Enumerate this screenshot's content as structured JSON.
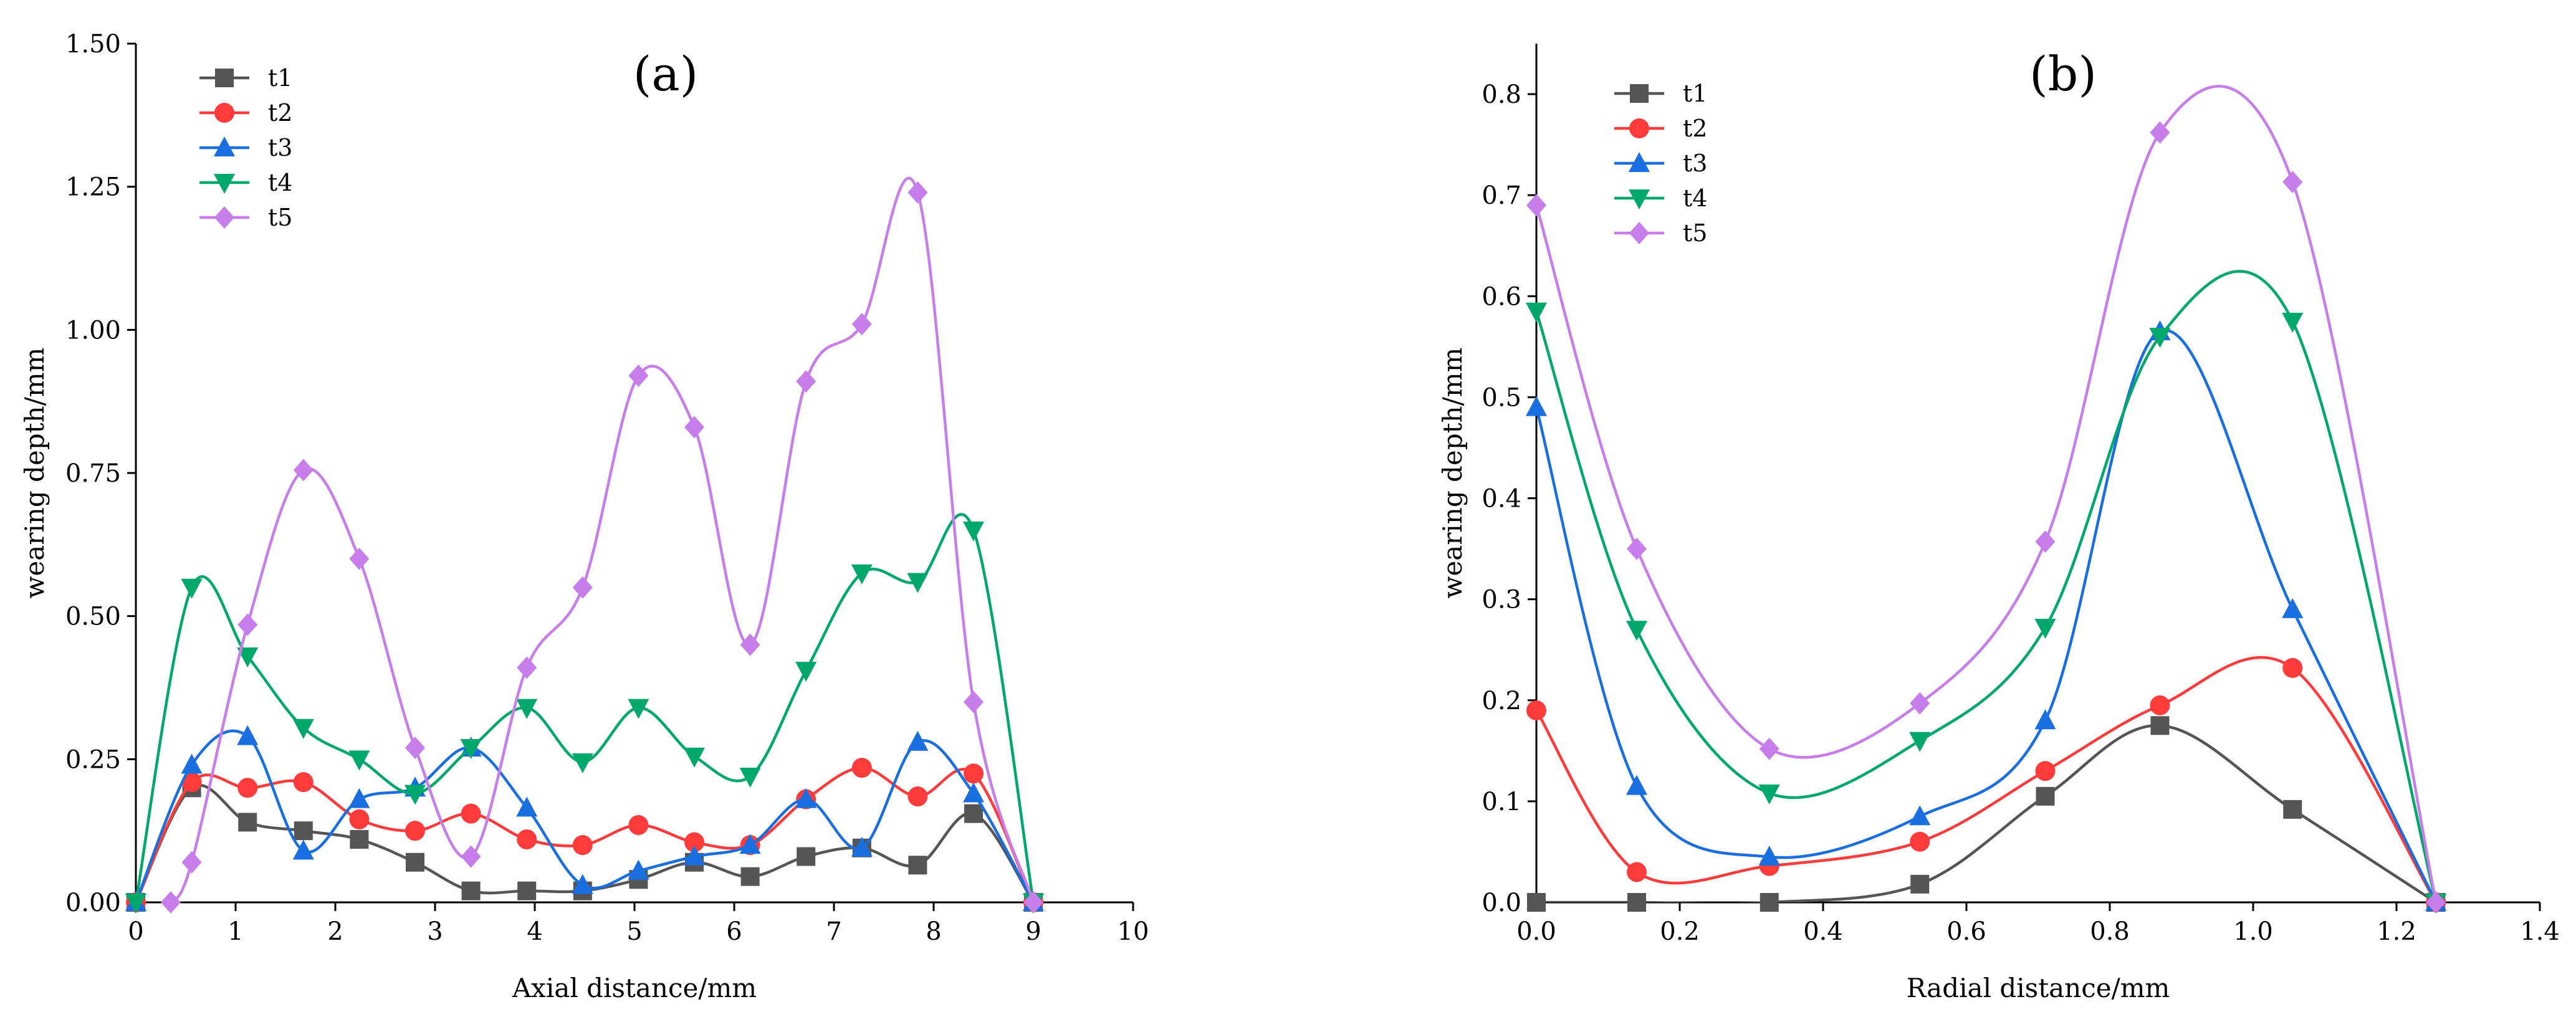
{
  "chart_data": [
    {
      "type": "line",
      "label": "(a)",
      "xlabel": "Axial distance/mm",
      "ylabel": "wearing depth/mm",
      "xlim": [
        0,
        10
      ],
      "ylim": [
        0,
        1.5
      ],
      "xticks": [
        "0",
        "1",
        "2",
        "3",
        "4",
        "5",
        "6",
        "7",
        "8",
        "9",
        "10"
      ],
      "yticks": [
        "0.00",
        "0.25",
        "0.50",
        "0.75",
        "1.00",
        "1.25",
        "1.50"
      ],
      "legend_position": "top-left",
      "series": [
        {
          "name": "t1",
          "color": "#555555",
          "marker": "square",
          "x": [
            0,
            0.56,
            1.12,
            1.68,
            2.24,
            2.8,
            3.36,
            3.92,
            4.48,
            5.04,
            5.6,
            6.16,
            6.72,
            7.28,
            7.84,
            8.4,
            9.0
          ],
          "y": [
            0.0,
            0.2,
            0.14,
            0.125,
            0.11,
            0.07,
            0.02,
            0.02,
            0.02,
            0.04,
            0.07,
            0.045,
            0.08,
            0.095,
            0.065,
            0.155,
            0.0
          ]
        },
        {
          "name": "t2",
          "color": "#ff3b3b",
          "marker": "circle",
          "x": [
            0,
            0.56,
            1.12,
            1.68,
            2.24,
            2.8,
            3.36,
            3.92,
            4.48,
            5.04,
            5.6,
            6.16,
            6.72,
            7.28,
            7.84,
            8.4,
            9.0
          ],
          "y": [
            0.0,
            0.21,
            0.2,
            0.21,
            0.145,
            0.125,
            0.155,
            0.11,
            0.1,
            0.135,
            0.105,
            0.1,
            0.18,
            0.235,
            0.185,
            0.225,
            0.0
          ]
        },
        {
          "name": "t3",
          "color": "#1a6fe0",
          "marker": "triangle-up",
          "x": [
            0,
            0.56,
            1.12,
            1.68,
            2.24,
            2.8,
            3.36,
            3.92,
            4.48,
            5.04,
            5.6,
            6.16,
            6.72,
            7.28,
            7.84,
            8.4,
            9.0
          ],
          "y": [
            0.0,
            0.24,
            0.29,
            0.09,
            0.18,
            0.2,
            0.27,
            0.165,
            0.03,
            0.055,
            0.08,
            0.1,
            0.18,
            0.095,
            0.28,
            0.19,
            0.0
          ]
        },
        {
          "name": "t4",
          "color": "#00a86b",
          "marker": "triangle-down",
          "x": [
            0,
            0.56,
            1.12,
            1.68,
            2.24,
            2.8,
            3.36,
            3.92,
            4.48,
            5.04,
            5.6,
            6.16,
            6.72,
            7.28,
            7.84,
            8.4,
            9.0
          ],
          "y": [
            0.0,
            0.55,
            0.43,
            0.305,
            0.25,
            0.19,
            0.27,
            0.34,
            0.245,
            0.34,
            0.255,
            0.22,
            0.405,
            0.575,
            0.56,
            0.65,
            0.0
          ]
        },
        {
          "name": "t5",
          "color": "#c77dea",
          "marker": "diamond",
          "x": [
            0.35,
            0.56,
            1.12,
            1.68,
            2.24,
            2.8,
            3.36,
            3.92,
            4.48,
            5.04,
            5.6,
            6.16,
            6.72,
            7.28,
            7.84,
            8.4,
            9.0
          ],
          "y": [
            0.0,
            0.07,
            0.485,
            0.755,
            0.6,
            0.27,
            0.08,
            0.41,
            0.55,
            0.92,
            0.83,
            0.45,
            0.91,
            1.01,
            1.24,
            0.35,
            0.0
          ]
        }
      ]
    },
    {
      "type": "line",
      "label": "(b)",
      "xlabel": "Radial distance/mm",
      "ylabel": "wearing depth/mm",
      "xlim": [
        0,
        1.4
      ],
      "ylim": [
        0,
        0.85
      ],
      "xticks": [
        "0.0",
        "0.2",
        "0.4",
        "0.6",
        "0.8",
        "1.0",
        "1.2",
        "1.4"
      ],
      "yticks": [
        "0.0",
        "0.1",
        "0.2",
        "0.3",
        "0.4",
        "0.5",
        "0.6",
        "0.7",
        "0.8"
      ],
      "legend_position": "top-left",
      "series": [
        {
          "name": "t1",
          "color": "#555555",
          "marker": "square",
          "x": [
            0,
            0.14,
            0.325,
            0.535,
            0.71,
            0.87,
            1.055,
            1.255
          ],
          "y": [
            0.0,
            0.0,
            0.0,
            0.018,
            0.105,
            0.175,
            0.092,
            0.0
          ]
        },
        {
          "name": "t2",
          "color": "#ff3b3b",
          "marker": "circle",
          "x": [
            0,
            0.14,
            0.325,
            0.535,
            0.71,
            0.87,
            1.055,
            1.255
          ],
          "y": [
            0.19,
            0.03,
            0.036,
            0.06,
            0.13,
            0.195,
            0.232,
            0.0
          ]
        },
        {
          "name": "t3",
          "color": "#1a6fe0",
          "marker": "triangle-up",
          "x": [
            0,
            0.14,
            0.325,
            0.535,
            0.71,
            0.87,
            1.055,
            1.255
          ],
          "y": [
            0.49,
            0.115,
            0.045,
            0.085,
            0.18,
            0.565,
            0.29,
            0.0
          ]
        },
        {
          "name": "t4",
          "color": "#00a86b",
          "marker": "triangle-down",
          "x": [
            0,
            0.14,
            0.325,
            0.535,
            0.71,
            0.87,
            1.055,
            1.255
          ],
          "y": [
            0.585,
            0.27,
            0.108,
            0.16,
            0.272,
            0.56,
            0.575,
            0.0
          ]
        },
        {
          "name": "t5",
          "color": "#c77dea",
          "marker": "diamond",
          "x": [
            0,
            0.14,
            0.325,
            0.535,
            0.71,
            0.87,
            1.055,
            1.255
          ],
          "y": [
            0.69,
            0.35,
            0.152,
            0.197,
            0.357,
            0.762,
            0.713,
            0.0
          ]
        }
      ]
    }
  ]
}
